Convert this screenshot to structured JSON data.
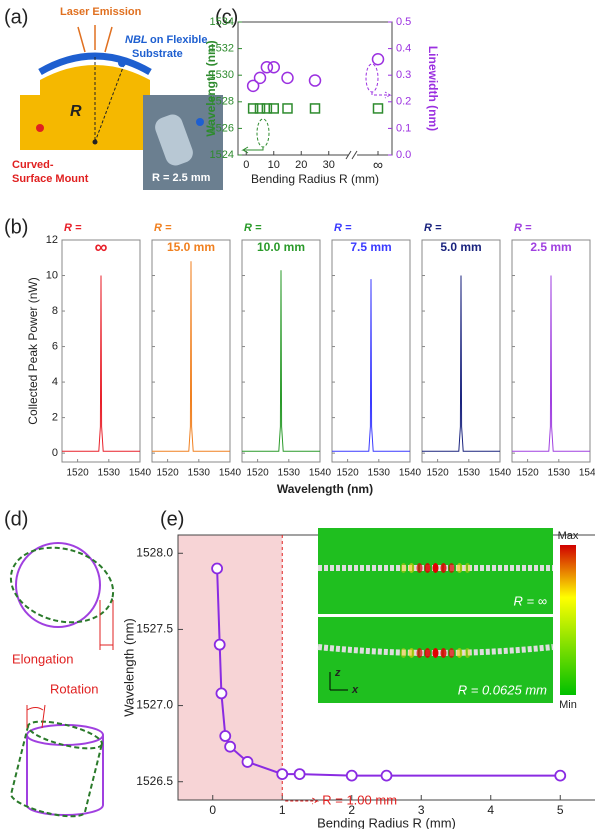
{
  "panel_labels": [
    "(a)",
    "(b)",
    "(c)",
    "(d)",
    "(e)"
  ],
  "diagram_a": {
    "emission": "Laser Emission",
    "nbl": "NBL",
    "nbl_rest": "on Flexible",
    "substrate": "Substrate",
    "radius": "R",
    "mount_1": "Curved-",
    "mount_2": "Surface Mount",
    "photo_label": "R = 2.5 mm"
  },
  "diagram_d": {
    "elongation": "Elongation",
    "rotation": "Rotation"
  },
  "chart_data": [
    {
      "type": "scatter",
      "xlabel": "Bending Radius R (mm)",
      "ylabel": "Wavelength (nm)",
      "y2label": "Linewidth (nm)",
      "x": [
        2.5,
        5,
        7.5,
        10,
        15,
        25,
        "∞"
      ],
      "xlim": [
        -3,
        37
      ],
      "xticks": [
        0,
        10,
        20,
        30
      ],
      "ylim": [
        1524,
        1534
      ],
      "yticks": [
        1524,
        1526,
        1528,
        1530,
        1532,
        1534
      ],
      "y2lim": [
        0,
        0.5
      ],
      "y2ticks": [
        {
          "value": 0,
          "label": "0.0"
        },
        0.1,
        0.2,
        0.3,
        0.4,
        0.5
      ],
      "series": [
        {
          "color": "#2e8b2e",
          "marker": "square",
          "values": [
            1527.5,
            1527.5,
            1527.5,
            1527.5,
            1527.5,
            1527.5,
            1527.5
          ]
        },
        {
          "color": "#9b30e0",
          "marker": "circle",
          "axis": "y2",
          "values": [
            0.26,
            0.29,
            0.33,
            0.33,
            0.29,
            0.28,
            0.36
          ]
        }
      ]
    },
    {
      "type": "line",
      "xlabel": "Wavelength (nm)",
      "ylabel": "Collected Peak Power (nW)",
      "label_prefix": "R =",
      "x": [
        1515,
        1526.8,
        1527.3,
        1527.5,
        1527.7,
        1528.2,
        1540
      ],
      "xlim": [
        1515,
        1540
      ],
      "xticks": [
        1520,
        1530,
        1540
      ],
      "ylim": [
        -0.5,
        12
      ],
      "yticks": [
        0,
        2,
        4,
        6,
        8,
        10,
        12
      ],
      "series": [
        {
          "name": "∞",
          "color": "#e8202a",
          "values": [
            0.1,
            0.1,
            1.5,
            10,
            1.5,
            0.1,
            0.1
          ]
        },
        {
          "name": "15.0 mm",
          "color": "#f08020",
          "values": [
            0.1,
            0.1,
            1.5,
            10.8,
            1.5,
            0.1,
            0.1
          ]
        },
        {
          "name": "10.0 mm",
          "color": "#2a9a2a",
          "values": [
            0.1,
            0.1,
            1.5,
            10.3,
            1.5,
            0.1,
            0.1
          ]
        },
        {
          "name": "7.5 mm",
          "color": "#3a3aff",
          "values": [
            0.1,
            0.1,
            1.5,
            9.8,
            1.5,
            0.1,
            0.1
          ]
        },
        {
          "name": "5.0 mm",
          "color": "#1a237e",
          "values": [
            0.1,
            0.1,
            1.5,
            10,
            1.5,
            0.1,
            0.1
          ]
        },
        {
          "name": "2.5 mm",
          "color": "#a040e0",
          "values": [
            0.1,
            0.1,
            1.5,
            10,
            1.5,
            0.1,
            0.1
          ]
        }
      ]
    },
    {
      "type": "line",
      "marker": "circle",
      "color": "#8a2be2",
      "xlabel": "Bending Radius R (mm)",
      "ylabel": "Wavelength (nm)",
      "x": [
        0.0625,
        0.1,
        0.125,
        0.18,
        0.25,
        0.5,
        1,
        1.25,
        2,
        2.5,
        5
      ],
      "values": [
        1527.9,
        1527.4,
        1527.08,
        1526.8,
        1526.73,
        1526.63,
        1526.55,
        1526.55,
        1526.54,
        1526.54,
        1526.54
      ],
      "xlim": [
        -0.5,
        5.5
      ],
      "xticks": [
        0,
        1,
        2,
        3,
        4,
        5
      ],
      "ylim": [
        1526.38,
        1528.12
      ],
      "yticks": [
        1526.5,
        {
          "value": 1527,
          "label": "1527.0"
        },
        1527.5,
        {
          "value": 1528,
          "label": "1528.0"
        }
      ],
      "shade_x": [
        -0.5,
        1
      ],
      "annotation": {
        "text": "R = 1.00 mm",
        "x": 1
      },
      "inset": {
        "top_label": "R = ∞",
        "bottom_label": "R = 0.0625 mm",
        "colorbar_max": "Max",
        "colorbar_min": "Min",
        "axis_z": "z",
        "axis_x": "x"
      }
    }
  ]
}
